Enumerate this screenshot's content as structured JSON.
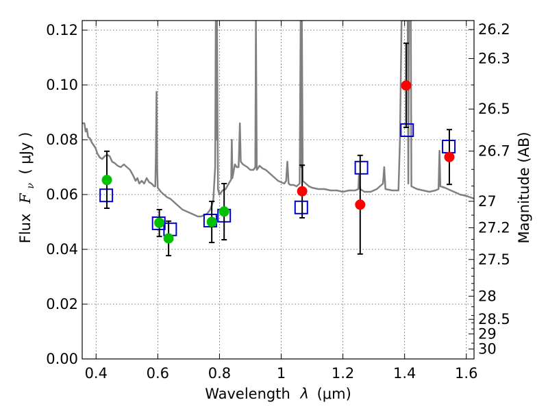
{
  "chart_data": {
    "type": "scatter",
    "xlabel_prefix": "Wavelength",
    "xlabel_symbol": "λ",
    "xlabel_unit": "(μm)",
    "ylabel_prefix": "Flux",
    "ylabel_symbol": "F",
    "ylabel_subscript": "ν",
    "ylabel_unit": "( μJy )",
    "y2label": "Magnitude (AB)",
    "xlim": [
      0.355,
      1.625
    ],
    "ylim": [
      0.0,
      0.1235
    ],
    "xticks": [
      0.4,
      0.6,
      0.8,
      1.0,
      1.2,
      1.4,
      1.6
    ],
    "xtick_labels": [
      "0.4",
      "0.6",
      "0.8",
      "1",
      "1.2",
      "1.4",
      "1.6"
    ],
    "yticks": [
      0.0,
      0.02,
      0.04,
      0.06,
      0.08,
      0.1,
      0.12
    ],
    "ytick_labels": [
      "0.00",
      "0.02",
      "0.04",
      "0.06",
      "0.08",
      "0.10",
      "0.12"
    ],
    "mag_ticks": [
      "26.2",
      "26.3",
      "26.5",
      "26.7",
      "27",
      "27.2",
      "27.5",
      "28",
      "28.5",
      "29",
      "30"
    ],
    "mag_minor_ticks": [
      26.4,
      26.6,
      26.8,
      26.9,
      27.1,
      27.3,
      27.4,
      27.6,
      27.7,
      27.8,
      27.9,
      28.2,
      28.4,
      28.6,
      28.8,
      29.5
    ],
    "colors": {
      "model": "#808080",
      "green": "#00c000",
      "red": "#ff0000",
      "square": "#0000cc",
      "errorbar": "#000000"
    },
    "model_spectrum": [
      [
        0.355,
        0.086
      ],
      [
        0.362,
        0.086
      ],
      [
        0.366,
        0.083
      ],
      [
        0.37,
        0.084
      ],
      [
        0.374,
        0.081
      ],
      [
        0.38,
        0.0805
      ],
      [
        0.386,
        0.079
      ],
      [
        0.392,
        0.078
      ],
      [
        0.398,
        0.077
      ],
      [
        0.404,
        0.075
      ],
      [
        0.412,
        0.0735
      ],
      [
        0.42,
        0.073
      ],
      [
        0.428,
        0.074
      ],
      [
        0.436,
        0.0745
      ],
      [
        0.444,
        0.074
      ],
      [
        0.452,
        0.072
      ],
      [
        0.46,
        0.0715
      ],
      [
        0.47,
        0.0705
      ],
      [
        0.48,
        0.07
      ],
      [
        0.49,
        0.071
      ],
      [
        0.5,
        0.07
      ],
      [
        0.51,
        0.069
      ],
      [
        0.52,
        0.067
      ],
      [
        0.528,
        0.065
      ],
      [
        0.534,
        0.066
      ],
      [
        0.54,
        0.064
      ],
      [
        0.548,
        0.065
      ],
      [
        0.556,
        0.064
      ],
      [
        0.564,
        0.066
      ],
      [
        0.572,
        0.0645
      ],
      [
        0.58,
        0.064
      ],
      [
        0.588,
        0.063
      ],
      [
        0.592,
        0.063
      ],
      [
        0.594,
        0.075
      ],
      [
        0.596,
        0.0975
      ],
      [
        0.598,
        0.07
      ],
      [
        0.6,
        0.0625
      ],
      [
        0.61,
        0.061
      ],
      [
        0.62,
        0.06
      ],
      [
        0.63,
        0.059
      ],
      [
        0.64,
        0.0585
      ],
      [
        0.65,
        0.0575
      ],
      [
        0.66,
        0.0565
      ],
      [
        0.67,
        0.0555
      ],
      [
        0.68,
        0.0545
      ],
      [
        0.69,
        0.054
      ],
      [
        0.7,
        0.0535
      ],
      [
        0.71,
        0.053
      ],
      [
        0.72,
        0.0525
      ],
      [
        0.73,
        0.052
      ],
      [
        0.74,
        0.052
      ],
      [
        0.75,
        0.0525
      ],
      [
        0.76,
        0.053
      ],
      [
        0.77,
        0.0545
      ],
      [
        0.775,
        0.056
      ],
      [
        0.78,
        0.058
      ],
      [
        0.786,
        0.07
      ],
      [
        0.788,
        0.1235
      ],
      [
        0.79,
        0.08
      ],
      [
        0.792,
        0.1235
      ],
      [
        0.795,
        0.062
      ],
      [
        0.8,
        0.06
      ],
      [
        0.81,
        0.0615
      ],
      [
        0.82,
        0.062
      ],
      [
        0.83,
        0.064
      ],
      [
        0.838,
        0.0655
      ],
      [
        0.84,
        0.08
      ],
      [
        0.842,
        0.066
      ],
      [
        0.85,
        0.071
      ],
      [
        0.856,
        0.07
      ],
      [
        0.862,
        0.07
      ],
      [
        0.866,
        0.086
      ],
      [
        0.869,
        0.072
      ],
      [
        0.876,
        0.071
      ],
      [
        0.89,
        0.07
      ],
      [
        0.9,
        0.069
      ],
      [
        0.91,
        0.069
      ],
      [
        0.916,
        0.07
      ],
      [
        0.918,
        0.1235
      ],
      [
        0.921,
        0.069
      ],
      [
        0.93,
        0.0705
      ],
      [
        0.94,
        0.0695
      ],
      [
        0.95,
        0.069
      ],
      [
        0.96,
        0.068
      ],
      [
        0.97,
        0.067
      ],
      [
        0.98,
        0.066
      ],
      [
        0.99,
        0.065
      ],
      [
        1.0,
        0.0645
      ],
      [
        1.01,
        0.064
      ],
      [
        1.016,
        0.065
      ],
      [
        1.02,
        0.072
      ],
      [
        1.024,
        0.064
      ],
      [
        1.03,
        0.0635
      ],
      [
        1.04,
        0.0635
      ],
      [
        1.05,
        0.063
      ],
      [
        1.06,
        0.064
      ],
      [
        1.063,
        0.1235
      ],
      [
        1.065,
        0.07
      ],
      [
        1.067,
        0.1235
      ],
      [
        1.07,
        0.065
      ],
      [
        1.08,
        0.064
      ],
      [
        1.09,
        0.063
      ],
      [
        1.1,
        0.0625
      ],
      [
        1.12,
        0.062
      ],
      [
        1.14,
        0.062
      ],
      [
        1.16,
        0.0615
      ],
      [
        1.18,
        0.0615
      ],
      [
        1.2,
        0.061
      ],
      [
        1.22,
        0.0615
      ],
      [
        1.24,
        0.0615
      ],
      [
        1.25,
        0.062
      ],
      [
        1.252,
        0.067
      ],
      [
        1.256,
        0.062
      ],
      [
        1.27,
        0.061
      ],
      [
        1.29,
        0.061
      ],
      [
        1.31,
        0.062
      ],
      [
        1.33,
        0.064
      ],
      [
        1.334,
        0.07
      ],
      [
        1.338,
        0.062
      ],
      [
        1.36,
        0.0615
      ],
      [
        1.38,
        0.0615
      ],
      [
        1.385,
        0.08
      ],
      [
        1.39,
        0.1235
      ],
      [
        1.4,
        0.1235
      ],
      [
        1.405,
        0.1235
      ],
      [
        1.41,
        0.1235
      ],
      [
        1.412,
        0.064
      ],
      [
        1.414,
        0.1235
      ],
      [
        1.42,
        0.1235
      ],
      [
        1.422,
        0.063
      ],
      [
        1.44,
        0.062
      ],
      [
        1.46,
        0.0615
      ],
      [
        1.48,
        0.061
      ],
      [
        1.5,
        0.0615
      ],
      [
        1.51,
        0.062
      ],
      [
        1.513,
        0.076
      ],
      [
        1.516,
        0.063
      ],
      [
        1.53,
        0.0625
      ],
      [
        1.54,
        0.062
      ],
      [
        1.56,
        0.061
      ],
      [
        1.58,
        0.06
      ],
      [
        1.6,
        0.0595
      ],
      [
        1.625,
        0.0585
      ]
    ],
    "synthetic_squares": [
      {
        "x": 0.433,
        "y": 0.0597
      },
      {
        "x": 0.603,
        "y": 0.0495
      },
      {
        "x": 0.64,
        "y": 0.0473
      },
      {
        "x": 0.77,
        "y": 0.0505
      },
      {
        "x": 0.815,
        "y": 0.0523
      },
      {
        "x": 1.065,
        "y": 0.0553
      },
      {
        "x": 1.26,
        "y": 0.0698
      },
      {
        "x": 1.408,
        "y": 0.0835
      },
      {
        "x": 1.543,
        "y": 0.0775
      }
    ],
    "observed_points": [
      {
        "x": 0.435,
        "y": 0.0653,
        "err_lo": 0.055,
        "err_hi": 0.0758,
        "color": "green"
      },
      {
        "x": 0.605,
        "y": 0.0497,
        "err_lo": 0.0447,
        "err_hi": 0.0545,
        "color": "green"
      },
      {
        "x": 0.635,
        "y": 0.044,
        "err_lo": 0.0377,
        "err_hi": 0.0503,
        "color": "green"
      },
      {
        "x": 0.775,
        "y": 0.05,
        "err_lo": 0.0425,
        "err_hi": 0.0575,
        "color": "green"
      },
      {
        "x": 0.815,
        "y": 0.0538,
        "err_lo": 0.0435,
        "err_hi": 0.064,
        "color": "green"
      },
      {
        "x": 1.068,
        "y": 0.0612,
        "err_lo": 0.0515,
        "err_hi": 0.0707,
        "color": "red"
      },
      {
        "x": 1.256,
        "y": 0.0563,
        "err_lo": 0.0383,
        "err_hi": 0.0743,
        "color": "red"
      },
      {
        "x": 1.405,
        "y": 0.0998,
        "err_lo": 0.0845,
        "err_hi": 0.1152,
        "color": "red"
      },
      {
        "x": 1.545,
        "y": 0.0737,
        "err_lo": 0.0637,
        "err_hi": 0.0837,
        "color": "red"
      }
    ]
  }
}
